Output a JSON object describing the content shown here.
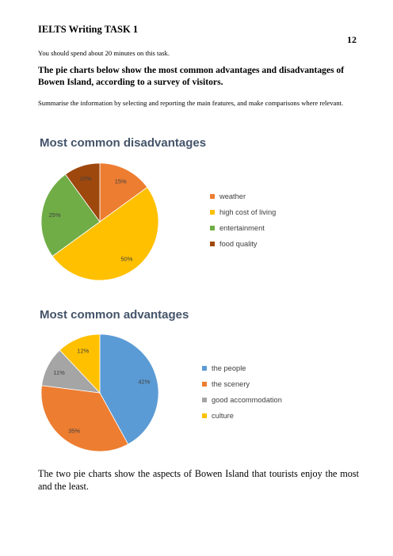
{
  "header": {
    "title": "IELTS Writing TASK 1",
    "page_number": "12"
  },
  "task": {
    "time_note": "You should spend about 20 minutes on this task.",
    "prompt": "The pie charts below show the most common advantages and disadvantages of Bowen Island, according to a survey of visitors.",
    "instruction": "Summarise the information by selecting and reporting the main features, and make comparisons where relevant."
  },
  "chart_data": [
    {
      "type": "pie",
      "title": "Most common disadvantages",
      "legend_position": "right",
      "categories": [
        "weather",
        "high cost of living",
        "entertainment",
        "food quality"
      ],
      "values": [
        15,
        50,
        25,
        10
      ],
      "labels": [
        "15%",
        "50%",
        "25%",
        "10%"
      ],
      "colors": [
        "#ed7d31",
        "#ffc000",
        "#70ad47",
        "#9e480e"
      ]
    },
    {
      "type": "pie",
      "title": "Most common advantages",
      "legend_position": "right",
      "categories": [
        "the people",
        "the scenery",
        "good accommodation",
        "culture"
      ],
      "values": [
        42,
        35,
        11,
        12
      ],
      "labels": [
        "42%",
        "35%",
        "11%",
        "12%"
      ],
      "colors": [
        "#5b9bd5",
        "#ed7d31",
        "#a5a5a5",
        "#ffc000"
      ]
    }
  ],
  "closing_text": "The two pie charts show the aspects of Bowen Island that tourists enjoy the most and the least."
}
